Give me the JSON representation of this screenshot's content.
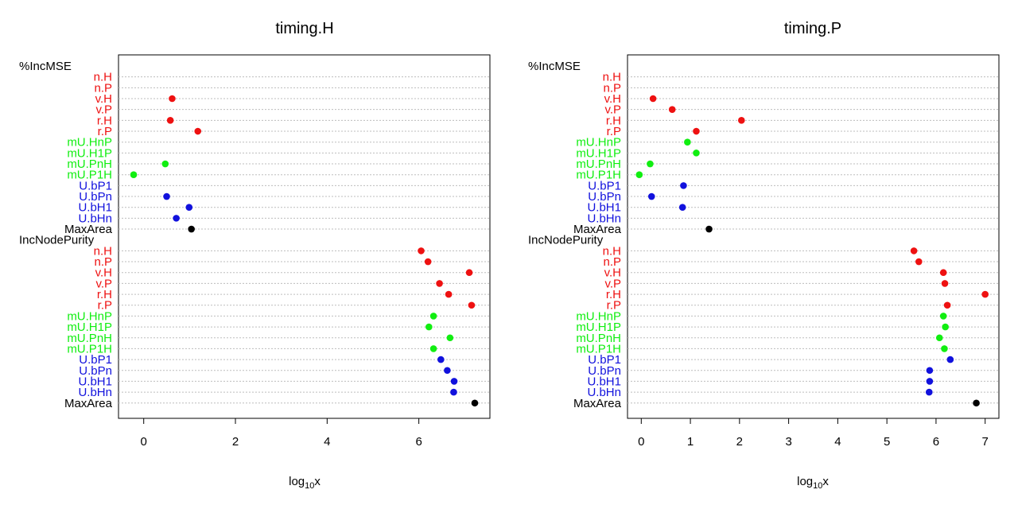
{
  "colors": {
    "red": "#ee1111",
    "green": "#11ee11",
    "blue": "#1111dd",
    "black": "#000000"
  },
  "chart_data": [
    {
      "type": "scatter",
      "title": "timing.H",
      "xlabel": "log10x",
      "xticks": [
        0,
        2,
        4,
        6
      ],
      "xlim": [
        -0.55,
        7.55
      ],
      "grid": true,
      "rows": [
        {
          "label": "%IncMSE",
          "color": "black",
          "header": true,
          "value": null
        },
        {
          "label": "n.H",
          "color": "red",
          "value": null
        },
        {
          "label": "n.P",
          "color": "red",
          "value": null
        },
        {
          "label": "v.H",
          "color": "red",
          "value": 0.62
        },
        {
          "label": "v.P",
          "color": "red",
          "value": null
        },
        {
          "label": "r.H",
          "color": "red",
          "value": 0.58
        },
        {
          "label": "r.P",
          "color": "red",
          "value": 1.18
        },
        {
          "label": "mU.HnP",
          "color": "green",
          "value": null
        },
        {
          "label": "mU.H1P",
          "color": "green",
          "value": null
        },
        {
          "label": "mU.PnH",
          "color": "green",
          "value": 0.47
        },
        {
          "label": "mU.P1H",
          "color": "green",
          "value": -0.22
        },
        {
          "label": "U.bP1",
          "color": "blue",
          "value": null
        },
        {
          "label": "U.bPn",
          "color": "blue",
          "value": 0.5
        },
        {
          "label": "U.bH1",
          "color": "blue",
          "value": 0.99
        },
        {
          "label": "U.bHn",
          "color": "blue",
          "value": 0.71
        },
        {
          "label": "MaxArea",
          "color": "black",
          "value": 1.04
        },
        {
          "label": "IncNodePurity",
          "color": "black",
          "header": true,
          "value": null
        },
        {
          "label": "n.H",
          "color": "red",
          "value": 6.05
        },
        {
          "label": "n.P",
          "color": "red",
          "value": 6.2
        },
        {
          "label": "v.H",
          "color": "red",
          "value": 7.1
        },
        {
          "label": "v.P",
          "color": "red",
          "value": 6.45
        },
        {
          "label": "r.H",
          "color": "red",
          "value": 6.65
        },
        {
          "label": "r.P",
          "color": "red",
          "value": 7.15
        },
        {
          "label": "mU.HnP",
          "color": "green",
          "value": 6.32
        },
        {
          "label": "mU.H1P",
          "color": "green",
          "value": 6.22
        },
        {
          "label": "mU.PnH",
          "color": "green",
          "value": 6.68
        },
        {
          "label": "mU.P1H",
          "color": "green",
          "value": 6.32
        },
        {
          "label": "U.bP1",
          "color": "blue",
          "value": 6.48
        },
        {
          "label": "U.bPn",
          "color": "blue",
          "value": 6.62
        },
        {
          "label": "U.bH1",
          "color": "blue",
          "value": 6.77
        },
        {
          "label": "U.bHn",
          "color": "blue",
          "value": 6.76
        },
        {
          "label": "MaxArea",
          "color": "black",
          "value": 7.22
        }
      ]
    },
    {
      "type": "scatter",
      "title": "timing.P",
      "xlabel": "log10x",
      "xticks": [
        0,
        1,
        2,
        3,
        4,
        5,
        6,
        7
      ],
      "xlim": [
        -0.28,
        7.28
      ],
      "grid": true,
      "rows": [
        {
          "label": "%IncMSE",
          "color": "black",
          "header": true,
          "value": null
        },
        {
          "label": "n.H",
          "color": "red",
          "value": null
        },
        {
          "label": "n.P",
          "color": "red",
          "value": null
        },
        {
          "label": "v.H",
          "color": "red",
          "value": 0.24
        },
        {
          "label": "v.P",
          "color": "red",
          "value": 0.63
        },
        {
          "label": "r.H",
          "color": "red",
          "value": 2.04
        },
        {
          "label": "r.P",
          "color": "red",
          "value": 1.12
        },
        {
          "label": "mU.HnP",
          "color": "green",
          "value": 0.94
        },
        {
          "label": "mU.H1P",
          "color": "green",
          "value": 1.12
        },
        {
          "label": "mU.PnH",
          "color": "green",
          "value": 0.18
        },
        {
          "label": "mU.P1H",
          "color": "green",
          "value": -0.04
        },
        {
          "label": "U.bP1",
          "color": "blue",
          "value": 0.86
        },
        {
          "label": "U.bPn",
          "color": "blue",
          "value": 0.21
        },
        {
          "label": "U.bH1",
          "color": "blue",
          "value": 0.84
        },
        {
          "label": "U.bHn",
          "color": "blue",
          "value": null
        },
        {
          "label": "MaxArea",
          "color": "black",
          "value": 1.38
        },
        {
          "label": "IncNodePurity",
          "color": "black",
          "header": true,
          "value": null
        },
        {
          "label": "n.H",
          "color": "red",
          "value": 5.55
        },
        {
          "label": "n.P",
          "color": "red",
          "value": 5.65
        },
        {
          "label": "v.H",
          "color": "red",
          "value": 6.15
        },
        {
          "label": "v.P",
          "color": "red",
          "value": 6.18
        },
        {
          "label": "r.H",
          "color": "red",
          "value": 7.0
        },
        {
          "label": "r.P",
          "color": "red",
          "value": 6.23
        },
        {
          "label": "mU.HnP",
          "color": "green",
          "value": 6.15
        },
        {
          "label": "mU.H1P",
          "color": "green",
          "value": 6.19
        },
        {
          "label": "mU.PnH",
          "color": "green",
          "value": 6.07
        },
        {
          "label": "mU.P1H",
          "color": "green",
          "value": 6.17
        },
        {
          "label": "U.bP1",
          "color": "blue",
          "value": 6.29
        },
        {
          "label": "U.bPn",
          "color": "blue",
          "value": 5.87
        },
        {
          "label": "U.bH1",
          "color": "blue",
          "value": 5.87
        },
        {
          "label": "U.bHn",
          "color": "blue",
          "value": 5.86
        },
        {
          "label": "MaxArea",
          "color": "black",
          "value": 6.82
        }
      ]
    }
  ]
}
